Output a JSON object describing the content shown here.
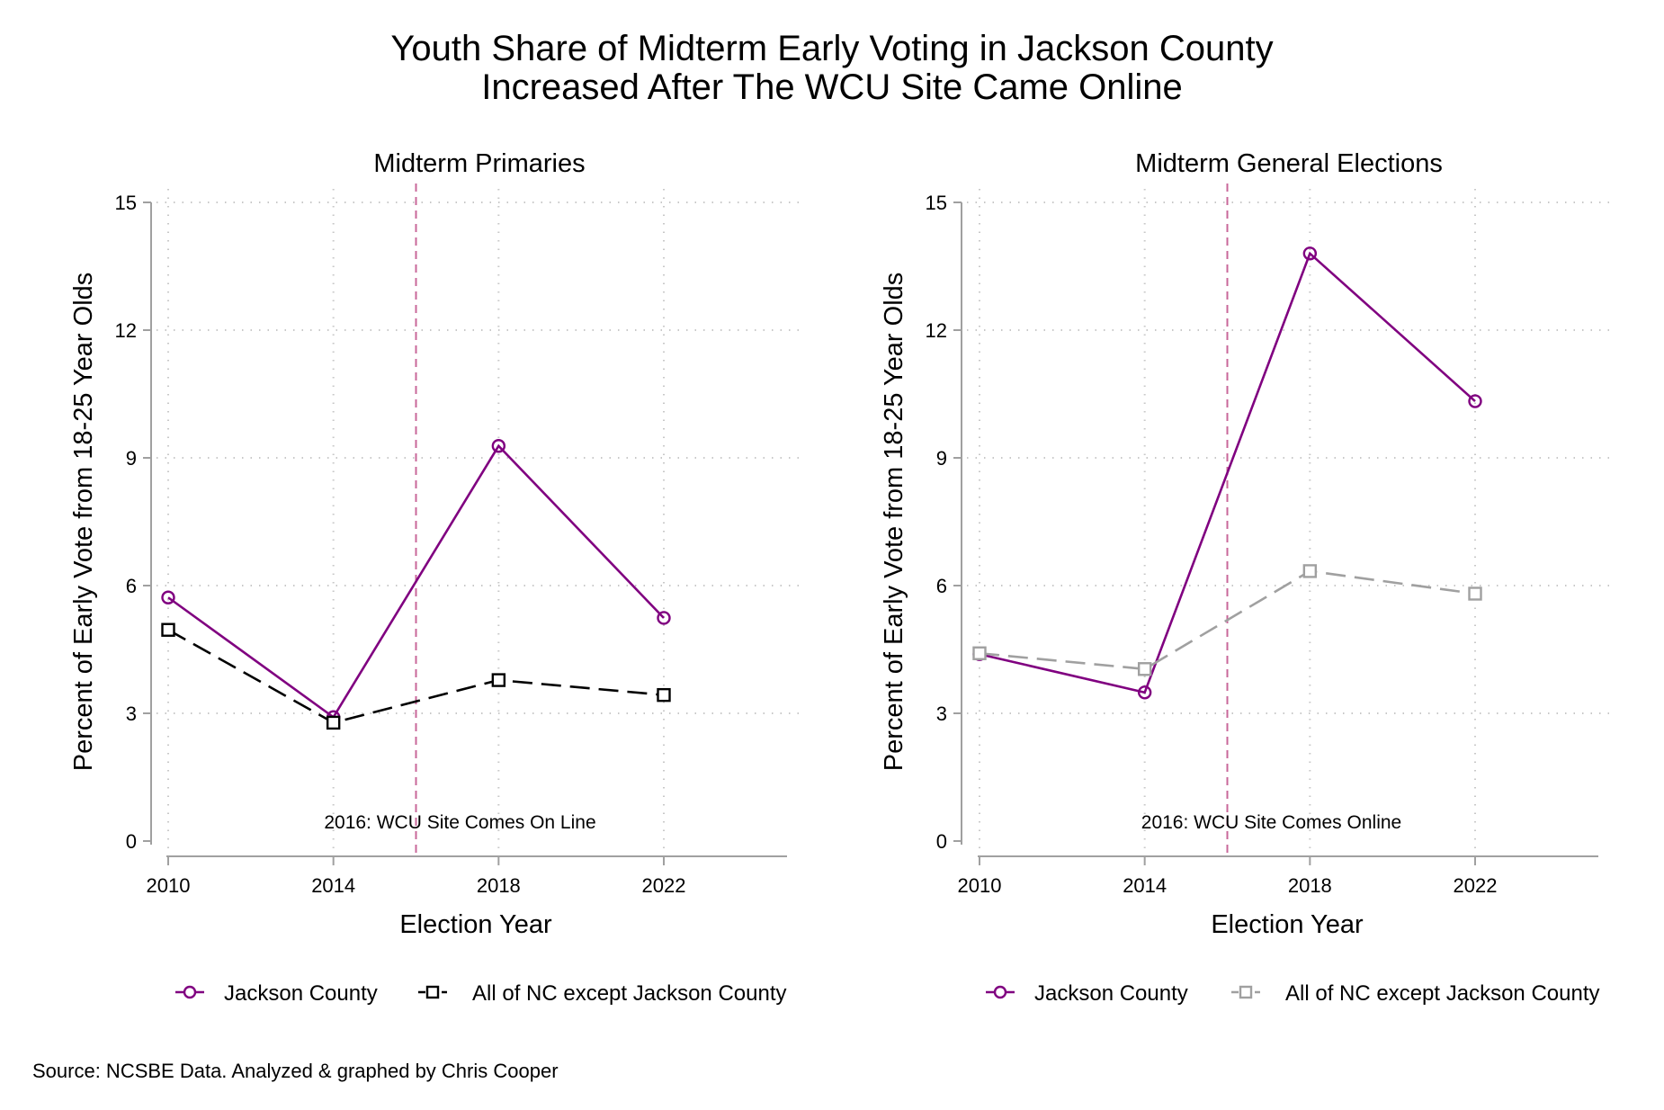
{
  "title_lines": [
    "Youth Share of Midterm Early Voting in Jackson County",
    "Increased After The WCU Site Came Online"
  ],
  "source": "Source: NCSBE Data. Analyzed & graphed by Chris Cooper",
  "colors": {
    "jackson": "#800080",
    "nc_left": "#000000",
    "nc_right": "#a0a0a0",
    "event_line": "#c8679a",
    "axis": "#a0a0a0",
    "grid": "#c8c8c8"
  },
  "chart_data": [
    {
      "type": "line",
      "title": "Midterm Primaries",
      "xlabel": "Election Year",
      "ylabel": "Percent of Early Vote from 18-25 Year Olds",
      "x": [
        2010,
        2014,
        2018,
        2022
      ],
      "xticks": [
        "2010",
        "2014",
        "2018",
        "2022"
      ],
      "yticks": [
        "0",
        "3",
        "6",
        "9",
        "12",
        "15"
      ],
      "ylim": [
        0,
        15
      ],
      "xlim": [
        2010,
        2025
      ],
      "grid": true,
      "event": {
        "x": 2016,
        "label": "2016: WCU Site Comes On Line"
      },
      "legend_position": "bottom",
      "series": [
        {
          "name": "Jackson County",
          "marker": "circle",
          "style": "solid",
          "color_key": "jackson",
          "values": [
            5.72,
            2.91,
            9.28,
            5.24
          ]
        },
        {
          "name": "All of NC except Jackson County",
          "marker": "square",
          "style": "dashed",
          "color_key": "nc_left",
          "values": [
            4.96,
            2.78,
            3.78,
            3.43
          ]
        }
      ]
    },
    {
      "type": "line",
      "title": "Midterm General Elections",
      "xlabel": "Election Year",
      "ylabel": "Percent of Early Vote from 18-25 Year Olds",
      "x": [
        2010,
        2014,
        2018,
        2022
      ],
      "xticks": [
        "2010",
        "2014",
        "2018",
        "2022"
      ],
      "yticks": [
        "0",
        "3",
        "6",
        "9",
        "12",
        "15"
      ],
      "ylim": [
        0,
        15
      ],
      "xlim": [
        2010,
        2025
      ],
      "grid": true,
      "event": {
        "x": 2016,
        "label": "2016: WCU Site Comes Online"
      },
      "legend_position": "bottom",
      "series": [
        {
          "name": "Jackson County",
          "marker": "circle",
          "style": "solid",
          "color_key": "jackson",
          "values": [
            4.39,
            3.49,
            13.8,
            10.33
          ]
        },
        {
          "name": "All of NC except Jackson County",
          "marker": "square",
          "style": "dashed",
          "color_key": "nc_right",
          "values": [
            4.41,
            4.04,
            6.34,
            5.81
          ]
        }
      ]
    }
  ]
}
